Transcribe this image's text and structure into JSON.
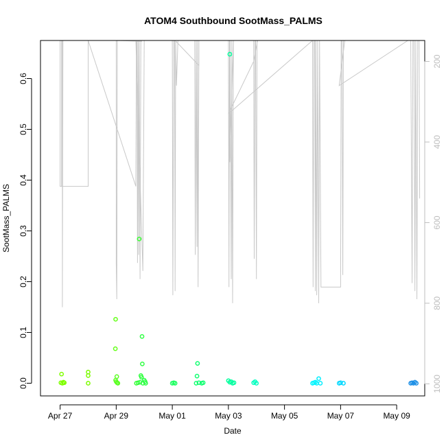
{
  "chart_data": {
    "type": "scatter",
    "title": "ATOM4 Southbound SootMass_PALMS",
    "xlabel": "Date",
    "ylabel": "SootMass_PALMS",
    "x_ticks": [
      "Apr 27",
      "Apr 29",
      "May 01",
      "May 03",
      "May 05",
      "May 07",
      "May 09"
    ],
    "x_tick_days": [
      0,
      2,
      4,
      6,
      8,
      10,
      12
    ],
    "xlim": [
      -0.7,
      13.0
    ],
    "ylim": [
      -0.025,
      0.675
    ],
    "y_ticks": [
      0.0,
      0.1,
      0.2,
      0.3,
      0.4,
      0.5,
      0.6
    ],
    "y_tick_labels": [
      "0.0",
      "0.1",
      "0.2",
      "0.3",
      "0.4",
      "0.5",
      "0.6"
    ],
    "y2_ticks": [
      200,
      400,
      600,
      800,
      1000
    ],
    "y2_tick_labels": [
      "200",
      "400",
      "600",
      "800",
      "1000"
    ],
    "y2lim": [
      1030,
      148
    ],
    "y2_reversed": true,
    "colors": {
      "pressure_line": "#c8c8c8",
      "axis": "#000000",
      "y2_axis": "#bdbdbd"
    },
    "points": [
      {
        "x": 0.03,
        "y": 0.001,
        "color": "#7fff00"
      },
      {
        "x": 0.05,
        "y": 0.018,
        "color": "#7fff00"
      },
      {
        "x": 0.08,
        "y": 0.0,
        "color": "#7fff00"
      },
      {
        "x": 0.12,
        "y": 0.002,
        "color": "#7fff00"
      },
      {
        "x": 0.15,
        "y": 0.001,
        "color": "#7fff00"
      },
      {
        "x": 1.0,
        "y": 0.022,
        "color": "#7cfc00"
      },
      {
        "x": 1.0,
        "y": 0.015,
        "color": "#7cfc00"
      },
      {
        "x": 1.0,
        "y": 0.0,
        "color": "#7cfc00"
      },
      {
        "x": 1.98,
        "y": 0.126,
        "color": "#66ff1a"
      },
      {
        "x": 1.97,
        "y": 0.068,
        "color": "#66ff1a"
      },
      {
        "x": 2.02,
        "y": 0.013,
        "color": "#5bff22"
      },
      {
        "x": 1.98,
        "y": 0.006,
        "color": "#5bff22"
      },
      {
        "x": 2.0,
        "y": 0.003,
        "color": "#5bff22"
      },
      {
        "x": 2.03,
        "y": 0.001,
        "color": "#5bff22"
      },
      {
        "x": 2.06,
        "y": 0.0,
        "color": "#5bff22"
      },
      {
        "x": 2.72,
        "y": 0.0,
        "color": "#36ff3a"
      },
      {
        "x": 2.78,
        "y": 0.001,
        "color": "#36ff3a"
      },
      {
        "x": 2.82,
        "y": 0.284,
        "color": "#3cff35"
      },
      {
        "x": 2.85,
        "y": 0.002,
        "color": "#30ff40"
      },
      {
        "x": 2.88,
        "y": 0.015,
        "color": "#30ff40"
      },
      {
        "x": 2.9,
        "y": 0.012,
        "color": "#30ff40"
      },
      {
        "x": 2.92,
        "y": 0.092,
        "color": "#2eff42"
      },
      {
        "x": 2.93,
        "y": 0.038,
        "color": "#2eff42"
      },
      {
        "x": 2.95,
        "y": 0.0,
        "color": "#2eff42"
      },
      {
        "x": 3.0,
        "y": 0.006,
        "color": "#2cff44"
      },
      {
        "x": 3.03,
        "y": 0.003,
        "color": "#2cff44"
      },
      {
        "x": 3.05,
        "y": 0.0,
        "color": "#2cff44"
      },
      {
        "x": 4.0,
        "y": 0.0,
        "color": "#1cff60"
      },
      {
        "x": 4.05,
        "y": 0.001,
        "color": "#1cff60"
      },
      {
        "x": 4.1,
        "y": 0.0,
        "color": "#1cff60"
      },
      {
        "x": 4.85,
        "y": 0.0,
        "color": "#10ff70"
      },
      {
        "x": 4.88,
        "y": 0.014,
        "color": "#10ff70"
      },
      {
        "x": 4.9,
        "y": 0.039,
        "color": "#10ff70"
      },
      {
        "x": 4.95,
        "y": 0.001,
        "color": "#10ff70"
      },
      {
        "x": 5.05,
        "y": 0.0,
        "color": "#10ff70"
      },
      {
        "x": 5.1,
        "y": 0.001,
        "color": "#10ff70"
      },
      {
        "x": 6.05,
        "y": 0.648,
        "color": "#00ff9c"
      },
      {
        "x": 6.0,
        "y": 0.005,
        "color": "#00ff9c"
      },
      {
        "x": 6.05,
        "y": 0.002,
        "color": "#00ff9c"
      },
      {
        "x": 6.1,
        "y": 0.003,
        "color": "#00ffa0"
      },
      {
        "x": 6.15,
        "y": 0.0,
        "color": "#00ffa0"
      },
      {
        "x": 6.2,
        "y": 0.001,
        "color": "#00ffa0"
      },
      {
        "x": 6.9,
        "y": 0.001,
        "color": "#00ffc0"
      },
      {
        "x": 6.95,
        "y": 0.003,
        "color": "#00ffc0"
      },
      {
        "x": 7.0,
        "y": 0.0,
        "color": "#00ffc0"
      },
      {
        "x": 9.0,
        "y": 0.0,
        "color": "#00f5ff"
      },
      {
        "x": 9.05,
        "y": 0.001,
        "color": "#00f5ff"
      },
      {
        "x": 9.1,
        "y": 0.002,
        "color": "#00f5ff"
      },
      {
        "x": 9.15,
        "y": 0.0,
        "color": "#00f5ff"
      },
      {
        "x": 9.22,
        "y": 0.009,
        "color": "#00eeff"
      },
      {
        "x": 9.28,
        "y": 0.0,
        "color": "#00eeff"
      },
      {
        "x": 9.95,
        "y": 0.0,
        "color": "#00d8ff"
      },
      {
        "x": 10.0,
        "y": 0.001,
        "color": "#00d8ff"
      },
      {
        "x": 10.1,
        "y": 0.0,
        "color": "#00d8ff"
      },
      {
        "x": 12.5,
        "y": 0.0,
        "color": "#1e90e6"
      },
      {
        "x": 12.55,
        "y": 0.001,
        "color": "#1e90e6"
      },
      {
        "x": 12.6,
        "y": 0.0,
        "color": "#1e90e6"
      },
      {
        "x": 12.65,
        "y": 0.002,
        "color": "#1e90e6"
      },
      {
        "x": 12.7,
        "y": 0.0,
        "color": "#1e90e6"
      }
    ],
    "pressure_trace": [
      [
        -0.7,
        148
      ],
      [
        0.0,
        148
      ],
      [
        0.0,
        510
      ],
      [
        0.05,
        510
      ],
      [
        0.05,
        148
      ],
      [
        0.08,
        148
      ],
      [
        0.08,
        810
      ],
      [
        0.1,
        148
      ],
      [
        1.0,
        148
      ],
      [
        1.0,
        510
      ],
      [
        0.05,
        510
      ],
      [
        1.0,
        510
      ],
      [
        1.0,
        148
      ],
      [
        2.7,
        510
      ],
      [
        2.72,
        148
      ],
      [
        2.74,
        148
      ],
      [
        2.76,
        700
      ],
      [
        2.78,
        148
      ],
      [
        2.8,
        680
      ],
      [
        2.82,
        148
      ],
      [
        2.85,
        740
      ],
      [
        2.88,
        148
      ],
      [
        2.9,
        150
      ],
      [
        2.0,
        148
      ],
      [
        2.0,
        700
      ],
      [
        2.02,
        790
      ],
      [
        2.04,
        148
      ],
      [
        2.7,
        148
      ],
      [
        2.95,
        720
      ],
      [
        3.0,
        148
      ],
      [
        3.02,
        148
      ],
      [
        4.0,
        148
      ],
      [
        4.02,
        780
      ],
      [
        4.05,
        148
      ],
      [
        4.08,
        148
      ],
      [
        4.1,
        770
      ],
      [
        4.12,
        148
      ],
      [
        4.15,
        260
      ],
      [
        4.2,
        148
      ],
      [
        4.6,
        148
      ],
      [
        4.8,
        148
      ],
      [
        4.82,
        680
      ],
      [
        4.85,
        148
      ],
      [
        4.88,
        660
      ],
      [
        4.9,
        148
      ],
      [
        4.92,
        760
      ],
      [
        4.95,
        148
      ],
      [
        4.95,
        210
      ],
      [
        4.1,
        148
      ],
      [
        6.0,
        148
      ],
      [
        6.02,
        760
      ],
      [
        6.04,
        148
      ],
      [
        6.06,
        148
      ],
      [
        6.1,
        740
      ],
      [
        6.12,
        148
      ],
      [
        6.15,
        800
      ],
      [
        6.18,
        148
      ],
      [
        6.05,
        450
      ],
      [
        6.05,
        150
      ],
      [
        6.05,
        148
      ],
      [
        6.9,
        148
      ],
      [
        6.92,
        690
      ],
      [
        6.95,
        148
      ],
      [
        6.97,
        148
      ],
      [
        7.0,
        740
      ],
      [
        7.02,
        148
      ],
      [
        7.04,
        148
      ],
      [
        6.9,
        200
      ],
      [
        6.0,
        330
      ],
      [
        9.0,
        148
      ],
      [
        9.02,
        760
      ],
      [
        9.05,
        148
      ],
      [
        9.08,
        148
      ],
      [
        9.1,
        770
      ],
      [
        9.12,
        148
      ],
      [
        9.15,
        780
      ],
      [
        9.18,
        148
      ],
      [
        9.22,
        800
      ],
      [
        9.25,
        148
      ],
      [
        9.3,
        760
      ],
      [
        10.0,
        760
      ],
      [
        10.02,
        148
      ],
      [
        10.05,
        148
      ],
      [
        10.08,
        730
      ],
      [
        10.1,
        148
      ],
      [
        10.15,
        148
      ],
      [
        9.95,
        260
      ],
      [
        12.4,
        148
      ],
      [
        12.5,
        148
      ],
      [
        12.55,
        750
      ],
      [
        12.58,
        148
      ],
      [
        12.62,
        148
      ],
      [
        12.65,
        770
      ],
      [
        12.68,
        148
      ],
      [
        12.72,
        790
      ],
      [
        12.75,
        148
      ],
      [
        12.8,
        148
      ],
      [
        12.82,
        540
      ]
    ]
  }
}
